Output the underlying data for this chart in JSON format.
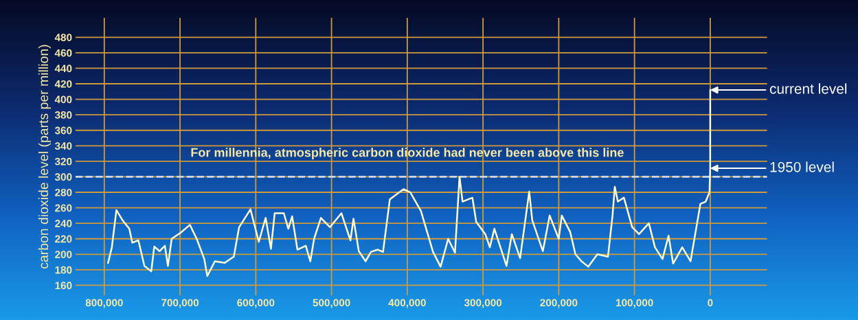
{
  "chart_data": {
    "type": "line",
    "ylabel": "carbon dioxide level (parts per million)",
    "x": [
      795000,
      790000,
      784000,
      776000,
      767000,
      763000,
      755000,
      747000,
      738000,
      734000,
      727000,
      720000,
      716000,
      711000,
      699000,
      687000,
      678000,
      668000,
      664000,
      654000,
      641000,
      629000,
      622000,
      607000,
      596000,
      587000,
      580000,
      575000,
      563000,
      557000,
      552000,
      545000,
      534000,
      528000,
      523000,
      514000,
      502000,
      487000,
      475000,
      471000,
      464000,
      455000,
      448000,
      439000,
      432000,
      423000,
      405000,
      396000,
      382000,
      366000,
      356000,
      346000,
      337000,
      331000,
      327000,
      314000,
      309000,
      297000,
      291000,
      285000,
      269000,
      262000,
      251000,
      239000,
      235000,
      221000,
      212000,
      200000,
      196000,
      185000,
      178000,
      170000,
      161000,
      149000,
      135000,
      129000,
      126000,
      122000,
      114000,
      103000,
      94000,
      81000,
      73000,
      63000,
      55000,
      49000,
      37000,
      26000,
      13000,
      6000,
      1000,
      70,
      0
    ],
    "series": [
      {
        "color": "#fffbd2",
        "values": [
          189,
          209,
          257,
          244,
          233,
          215,
          218,
          185,
          178,
          210,
          204,
          211,
          185,
          220,
          228,
          238,
          220,
          194,
          172,
          191,
          189,
          197,
          235,
          258,
          216,
          247,
          207,
          253,
          253,
          233,
          249,
          206,
          211,
          191,
          220,
          247,
          235,
          253,
          218,
          246,
          204,
          191,
          203,
          206,
          203,
          271,
          284,
          280,
          256,
          203,
          184,
          220,
          202,
          300,
          268,
          273,
          242,
          226,
          209,
          233,
          185,
          226,
          195,
          281,
          244,
          204,
          250,
          220,
          250,
          229,
          200,
          191,
          184,
          200,
          197,
          250,
          287,
          268,
          273,
          235,
          226,
          240,
          209,
          194,
          224,
          188,
          209,
          191,
          265,
          268,
          280,
          311,
          412
        ]
      }
    ],
    "xlim": [
      838000,
      -75000
    ],
    "xticks": [
      {
        "value": 800000,
        "label": "800,000"
      },
      {
        "value": 700000,
        "label": "700,000"
      },
      {
        "value": 600000,
        "label": "600,000"
      },
      {
        "value": 500000,
        "label": "500,000"
      },
      {
        "value": 400000,
        "label": "400,000"
      },
      {
        "value": 300000,
        "label": "300,000"
      },
      {
        "value": 200000,
        "label": "200,000"
      },
      {
        "value": 100000,
        "label": "100,000"
      },
      0
    ],
    "ylim": [
      147,
      505
    ],
    "yticks": [
      160,
      180,
      200,
      220,
      240,
      260,
      280,
      300,
      320,
      340,
      360,
      380,
      400,
      420,
      440,
      460,
      480
    ],
    "grid": true,
    "ref_lines": [
      {
        "axis": "y",
        "value": 300,
        "label": "For millennia, atmospheric carbon dioxide had never been above this line",
        "color": "#c8d8ee",
        "line_style": "dashed"
      }
    ],
    "annotations": [
      {
        "text": "current level",
        "x": 0,
        "y": 412
      },
      {
        "text": "1950 level",
        "x": 0,
        "y": 311
      }
    ]
  }
}
